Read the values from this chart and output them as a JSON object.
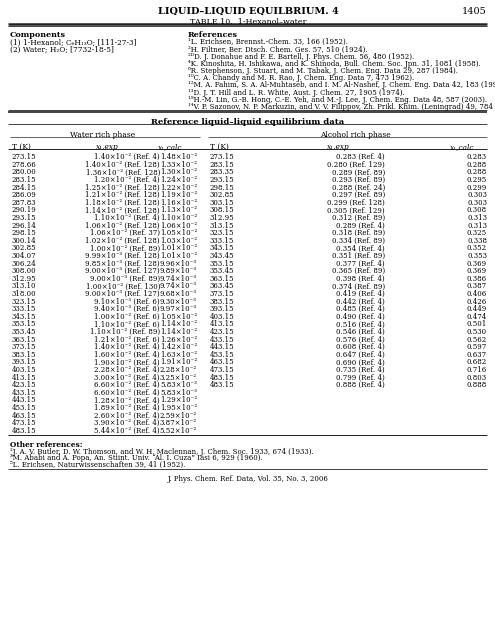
{
  "title": "LIQUID–LIQUID EQUILBRIUM. 4",
  "page_num": "1405",
  "table_title": "TABLE 10.  1-Hexanol–water",
  "components_label": "Components",
  "references_label": "References",
  "components": [
    "(1) 1-Hexanol; C₆H₁₃O; [111-27-3]",
    "(2) Water; H₂O; [7732-18-5]"
  ],
  "references": [
    "¹L. Erichsen, Brennst.-Chem. 33, 166 (1952).",
    "²H. Filtner, Ber. Dtsch. Chem. Ges. 57, 510 (1924).",
    "²ᴰD. J. Donahue and F. E. Bartell, J. Phys. Chem. 56, 480 (1952).",
    "⁴K. Kinoshita, H. Ishikawa, and K. Shinoda, Bull. Chem. Soc. Jpn. 31, 1081 (1958).",
    "⁶R. Stephenson, J. Stuart, and M. Tabak, J. Chem. Eng. Data 29, 287 (1984).",
    "¹⁰C. A. Chandy and M. R. Rao, J. Chem. Eng. Data 7, 473 1962).",
    "¹²M. A. Fahim, S. A. Al-Muhtaseb, and I. M. Al-Nashef, J. Chem. Eng. Data 42, 183 (1997).",
    "¹³D. J. T. Hill and L. R. White, Aust. J. Chem. 27, 1905 (1974).",
    "¹⁹H.-M. Lin, G.-B. Hong, C.-E. Yeh, and M.-J. Lee, J. Chem. Eng. Data 48, 587 (2003).",
    "¹⁴V. P. Sazonov, N. P. Markuzin, and V. V. Filippov, Zh. Prikl. Khim. (Leningrad) 49, 784 (1976)."
  ],
  "section_header": "Reference liquid–liquid equilibrium data",
  "water_phase_header": "Water rich phase",
  "alcohol_phase_header": "Alcohol rich phase",
  "water_data": [
    [
      "273.15",
      "1.40×10⁻² (Ref. 4)",
      "1.48×10⁻²"
    ],
    [
      "278.66",
      "1.40×10⁻² (Ref. 128)",
      "1.33×10⁻²"
    ],
    [
      "280.00",
      "1.36×10⁻² (Ref. 128)",
      "1.30×10⁻²"
    ],
    [
      "283.15",
      "1.20×10⁻² (Ref. 4)",
      "1.24×10⁻²"
    ],
    [
      "284.15",
      "1.25×10⁻² (Ref. 128)",
      "1.22×10⁻²"
    ],
    [
      "286.09",
      "1.21×10⁻² (Ref. 128)",
      "1.19×10⁻²"
    ],
    [
      "287.83",
      "1.18×10⁻² (Ref. 128)",
      "1.16×10⁻²"
    ],
    [
      "290.19",
      "1.14×10⁻² (Ref. 128)",
      "1.13×10⁻²"
    ],
    [
      "293.15",
      "1.10×10⁻² (Ref. 4)",
      "1.10×10⁻²"
    ],
    [
      "296.14",
      "1.06×10⁻² (Ref. 128)",
      "1.06×10⁻²"
    ],
    [
      "298.15",
      "1.06×10⁻² (Ref. 37)",
      "1.05×10⁻²"
    ],
    [
      "300.14",
      "1.02×10⁻² (Ref. 128)",
      "1.03×10⁻²"
    ],
    [
      "302.85",
      "1.00×10⁻² (Ref. 89)",
      "1.01×10⁻²"
    ],
    [
      "304.07",
      "9.99×10⁻³ (Ref. 128)",
      "1.01×10⁻²"
    ],
    [
      "306.24",
      "9.85×10⁻³ (Ref. 128)",
      "9.96×10⁻³"
    ],
    [
      "308.00",
      "9.00×10⁻³ (Ref. 127)",
      "9.89×10⁻³"
    ],
    [
      "312.95",
      "9.00×10⁻³ (Ref. 89)",
      "9.74×10⁻³"
    ],
    [
      "313.10",
      "1.00×10⁻² (Ref. 130)",
      "9.74×10⁻³"
    ],
    [
      "318.00",
      "9.00×10⁻³ (Ref. 127)",
      "9.68×10⁻³"
    ],
    [
      "323.15",
      "9.10×10⁻³ (Ref. 6)",
      "9.30×10⁻³"
    ],
    [
      "333.15",
      "9.40×10⁻³ (Ref. 6)",
      "9.97×10⁻³"
    ],
    [
      "343.15",
      "1.00×10⁻² (Ref. 6)",
      "1.05×10⁻²"
    ],
    [
      "353.15",
      "1.10×10⁻² (Ref. 6)",
      "1.14×10⁻²"
    ],
    [
      "353.45",
      "1.10×10⁻² (Ref. 89)",
      "1.14×10⁻²"
    ],
    [
      "363.15",
      "1.21×10⁻² (Ref. 6)",
      "1.26×10⁻²"
    ],
    [
      "373.15",
      "1.40×10⁻² (Ref. 4)",
      "1.42×10⁻²"
    ],
    [
      "383.15",
      "1.60×10⁻² (Ref. 4)",
      "1.63×10⁻²"
    ],
    [
      "393.15",
      "1.90×10⁻² (Ref. 4)",
      "1.91×10⁻²"
    ],
    [
      "403.15",
      "2.28×10⁻² (Ref. 4)",
      "2.28×10⁻²"
    ],
    [
      "413.15",
      "3.00×10⁻² (Ref. 4)",
      "3.25×10⁻²"
    ],
    [
      "423.15",
      "6.60×10⁻² (Ref. 4)",
      "5.83×10⁻³"
    ],
    [
      "433.15",
      "6.60×10⁻² (Ref. 4)",
      "5.83×10⁻³"
    ],
    [
      "443.15",
      "1.28×10⁻² (Ref. 4)",
      "1.29×10⁻²"
    ],
    [
      "453.15",
      "1.89×10⁻² (Ref. 4)",
      "1.95×10⁻²"
    ],
    [
      "463.15",
      "2.60×10⁻² (Ref. 4)",
      "2.59×10⁻²"
    ],
    [
      "473.15",
      "3.90×10⁻² (Ref. 4)",
      "3.87×10⁻²"
    ],
    [
      "483.15",
      "5.44×10⁻² (Ref. 4)",
      "5.52×10⁻²"
    ]
  ],
  "alcohol_data": [
    [
      "273.15",
      "0.283 (Ref. 4)",
      "0.283"
    ],
    [
      "283.15",
      "0.280 (Ref. 129)",
      "0.288"
    ],
    [
      "283.35",
      "0.289 (Ref. 89)",
      "0.288"
    ],
    [
      "293.15",
      "0.293 (Ref. 89)",
      "0.295"
    ],
    [
      "298.15",
      "0.288 (Ref. 24)",
      "0.299"
    ],
    [
      "302.85",
      "0.297 (Ref. 89)",
      "0.303"
    ],
    [
      "303.15",
      "0.299 (Ref. 128)",
      "0.303"
    ],
    [
      "308.15",
      "0.305 (Ref. 129)",
      "0.308"
    ],
    [
      "312.95",
      "0.312 (Ref. 89)",
      "0.313"
    ],
    [
      "313.15",
      "0.289 (Ref. 4)",
      "0.313"
    ],
    [
      "323.15",
      "0.318 (Ref. 89)",
      "0.325"
    ],
    [
      "333.15",
      "0.334 (Ref. 89)",
      "0.338"
    ],
    [
      "343.15",
      "0.354 (Ref. 4)",
      "0.352"
    ],
    [
      "343.45",
      "0.351 (Ref. 89)",
      "0.353"
    ],
    [
      "353.15",
      "0.377 (Ref. 4)",
      "0.369"
    ],
    [
      "353.45",
      "0.365 (Ref. 89)",
      "0.369"
    ],
    [
      "363.15",
      "0.398 (Ref. 4)",
      "0.386"
    ],
    [
      "363.45",
      "0.374 (Ref. 89)",
      "0.387"
    ],
    [
      "373.15",
      "0.419 (Ref. 4)",
      "0.406"
    ],
    [
      "383.15",
      "0.442 (Ref. 4)",
      "0.426"
    ],
    [
      "393.15",
      "0.485 (Ref. 4)",
      "0.449"
    ],
    [
      "403.15",
      "0.490 (Ref. 4)",
      "0.474"
    ],
    [
      "413.15",
      "0.516 (Ref. 4)",
      "0.501"
    ],
    [
      "423.15",
      "0.546 (Ref. 4)",
      "0.530"
    ],
    [
      "433.15",
      "0.576 (Ref. 4)",
      "0.562"
    ],
    [
      "443.15",
      "0.608 (Ref. 4)",
      "0.597"
    ],
    [
      "453.15",
      "0.647 (Ref. 4)",
      "0.637"
    ],
    [
      "463.15",
      "0.690 (Ref. 4)",
      "0.682"
    ],
    [
      "473.15",
      "0.735 (Ref. 4)",
      "0.716"
    ],
    [
      "483.15",
      "0.799 (Ref. 4)",
      "0.803"
    ],
    [
      "483.15",
      "0.888 (Ref. 4)",
      "0.888"
    ]
  ],
  "other_references_label": "Other references:",
  "other_references": [
    "²J. A. V. Butler, D. W. Thomson, and W. H. Maclennan, J. Chem. Soc. 1933, 674 (1933).",
    "³M. Ababi and A. Popa, An. Stiint. Univ. “Al. I. Cuza” Iasi 6, 929 (1960).",
    "⁵L. Erichsen, Naturwissenschaften 39, 41 (1952)."
  ],
  "bg_color": "#ffffff"
}
